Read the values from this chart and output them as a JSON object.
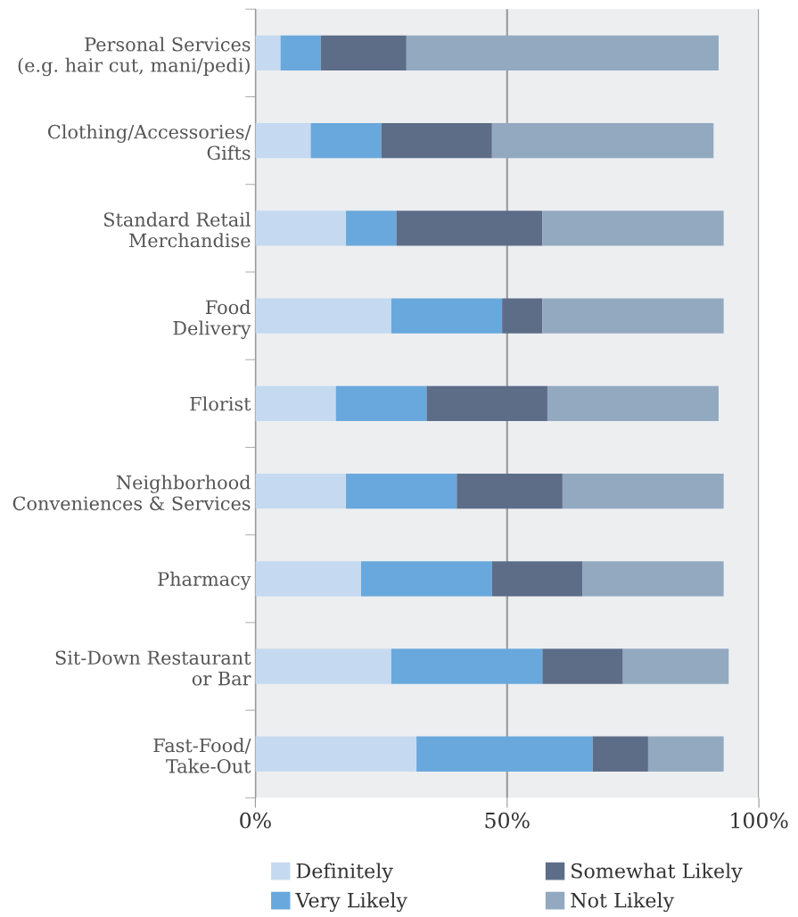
{
  "chart_data": {
    "type": "bar",
    "orientation": "horizontal",
    "stacked": true,
    "categories": [
      "Personal Services\n(e.g. hair cut, mani/pedi)",
      "Clothing/Accessories/\nGifts",
      "Standard Retail\nMerchandise",
      "Food\nDelivery",
      "Florist",
      "Neighborhood\nConveniences & Services",
      "Pharmacy",
      "Sit-Down Restaurant\nor Bar",
      "Fast-Food/\nTake-Out"
    ],
    "series": [
      {
        "name": "Definitely",
        "color": "#c5daf0",
        "values": [
          5,
          11,
          18,
          27,
          16,
          18,
          21,
          27,
          32
        ]
      },
      {
        "name": "Very Likely",
        "color": "#69a8dc",
        "values": [
          8,
          14,
          10,
          22,
          18,
          22,
          26,
          30,
          35
        ]
      },
      {
        "name": "Somewhat Likely",
        "color": "#5d6d88",
        "values": [
          17,
          22,
          29,
          8,
          24,
          21,
          18,
          16,
          11
        ]
      },
      {
        "name": "Not Likely",
        "color": "#92a9c0",
        "values": [
          62,
          44,
          36,
          36,
          34,
          32,
          28,
          21,
          15
        ]
      }
    ],
    "xlim": [
      0,
      100
    ],
    "xticks": [
      {
        "value": 0,
        "label": "0%"
      },
      {
        "value": 50,
        "label": "50%"
      },
      {
        "value": 100,
        "label": "100%"
      }
    ],
    "grid": "x",
    "legend": "bottom"
  }
}
